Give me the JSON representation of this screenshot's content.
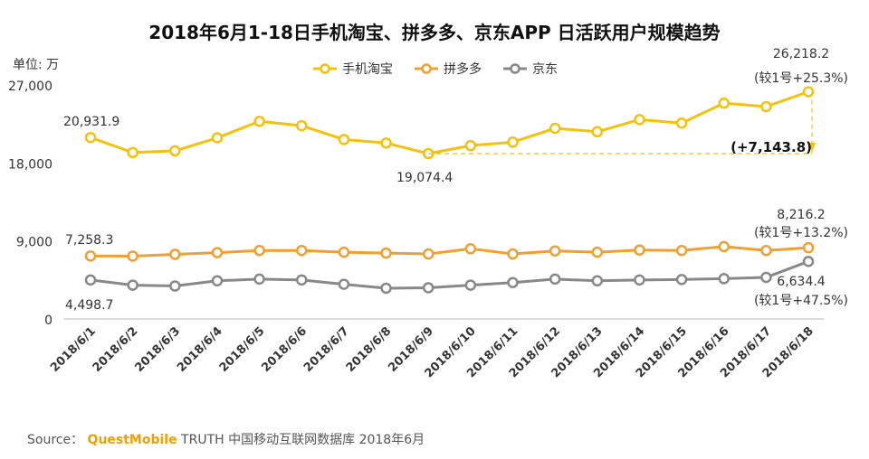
{
  "chart_data": {
    "type": "line",
    "title": "2018年6月1-18日手机淘宝、拼多多、京东APP 日活跃用户规模趋势",
    "unit_label": "单位: 万",
    "categories": [
      "2018/6/1",
      "2018/6/2",
      "2018/6/3",
      "2018/6/4",
      "2018/6/5",
      "2018/6/6",
      "2018/6/7",
      "2018/6/8",
      "2018/6/9",
      "2018/6/10",
      "2018/6/11",
      "2018/6/12",
      "2018/6/13",
      "2018/6/14",
      "2018/6/15",
      "2018/6/16",
      "2018/6/17",
      "2018/6/18"
    ],
    "y_ticks": [
      "0",
      "9,000",
      "18,000",
      "27,000"
    ],
    "ylim": [
      0,
      27000
    ],
    "legend_position": "top",
    "grid": false,
    "series": [
      {
        "name": "手机淘宝",
        "color": "#f4c20d",
        "values": [
          20931.9,
          19200,
          19400,
          20900,
          22800,
          22300,
          20700,
          20300,
          19074.4,
          20000,
          20400,
          22000,
          21600,
          23000,
          22600,
          24900,
          24500,
          26218.2
        ]
      },
      {
        "name": "拼多多",
        "color": "#f0a030",
        "values": [
          7258.3,
          7250,
          7450,
          7650,
          7900,
          7900,
          7700,
          7600,
          7500,
          8100,
          7500,
          7850,
          7700,
          7950,
          7900,
          8350,
          7900,
          8216.2
        ]
      },
      {
        "name": "京东",
        "color": "#888888",
        "values": [
          4498.7,
          3900,
          3800,
          4400,
          4600,
          4500,
          4000,
          3550,
          3600,
          3900,
          4200,
          4600,
          4400,
          4500,
          4550,
          4650,
          4800,
          6634.4
        ]
      }
    ],
    "annotations": {
      "taobao_first": "20,931.9",
      "taobao_min": "19,074.4",
      "taobao_last": "26,218.2",
      "taobao_last_pct": "(较1号+25.3%)",
      "taobao_diff": "(+7,143.8)",
      "pdd_first": "7,258.3",
      "pdd_last": "8,216.2",
      "pdd_last_pct": "(较1号+13.2%)",
      "jd_first": "4,498.7",
      "jd_last": "6,634.4",
      "jd_last_pct": "(较1号+47.5%)"
    }
  },
  "source": {
    "prefix": "Source：",
    "brand": "QuestMobile",
    "rest": " TRUTH 中国移动互联网数据库 2018年6月"
  }
}
